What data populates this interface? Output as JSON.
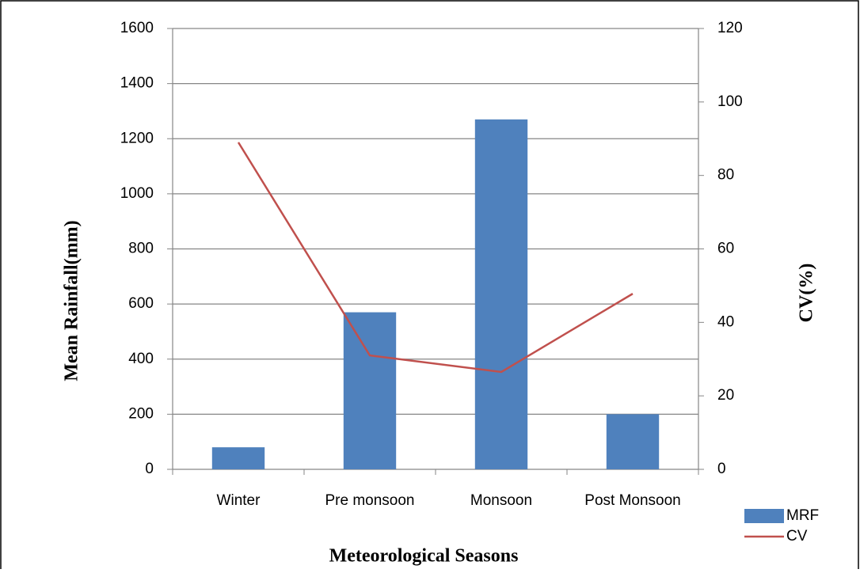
{
  "chart_data": {
    "type": "bar_line",
    "x_label": "Meteorological Seasons",
    "y_label": "Mean Rainfall(mm)",
    "y2_label": "CV(%)",
    "categories": [
      "Winter",
      "Pre monsoon",
      "Monsoon",
      "Post Monsoon"
    ],
    "series": [
      {
        "name": "MRF",
        "type": "bar",
        "color": "#4f81bd",
        "values": [
          80,
          570,
          1270,
          200
        ]
      },
      {
        "name": "CV",
        "type": "line",
        "color": "#c0504d",
        "axis": "y2",
        "values": [
          89,
          31,
          26.5,
          47.8
        ]
      }
    ],
    "ylim": [
      0,
      1600
    ],
    "yticks": [
      0,
      200,
      400,
      600,
      800,
      1000,
      1200,
      1400,
      1600
    ],
    "y2lim": [
      0,
      120
    ],
    "y2ticks": [
      0,
      20,
      40,
      60,
      80,
      100,
      120
    ],
    "grid": true,
    "legend": "bottom-right"
  }
}
